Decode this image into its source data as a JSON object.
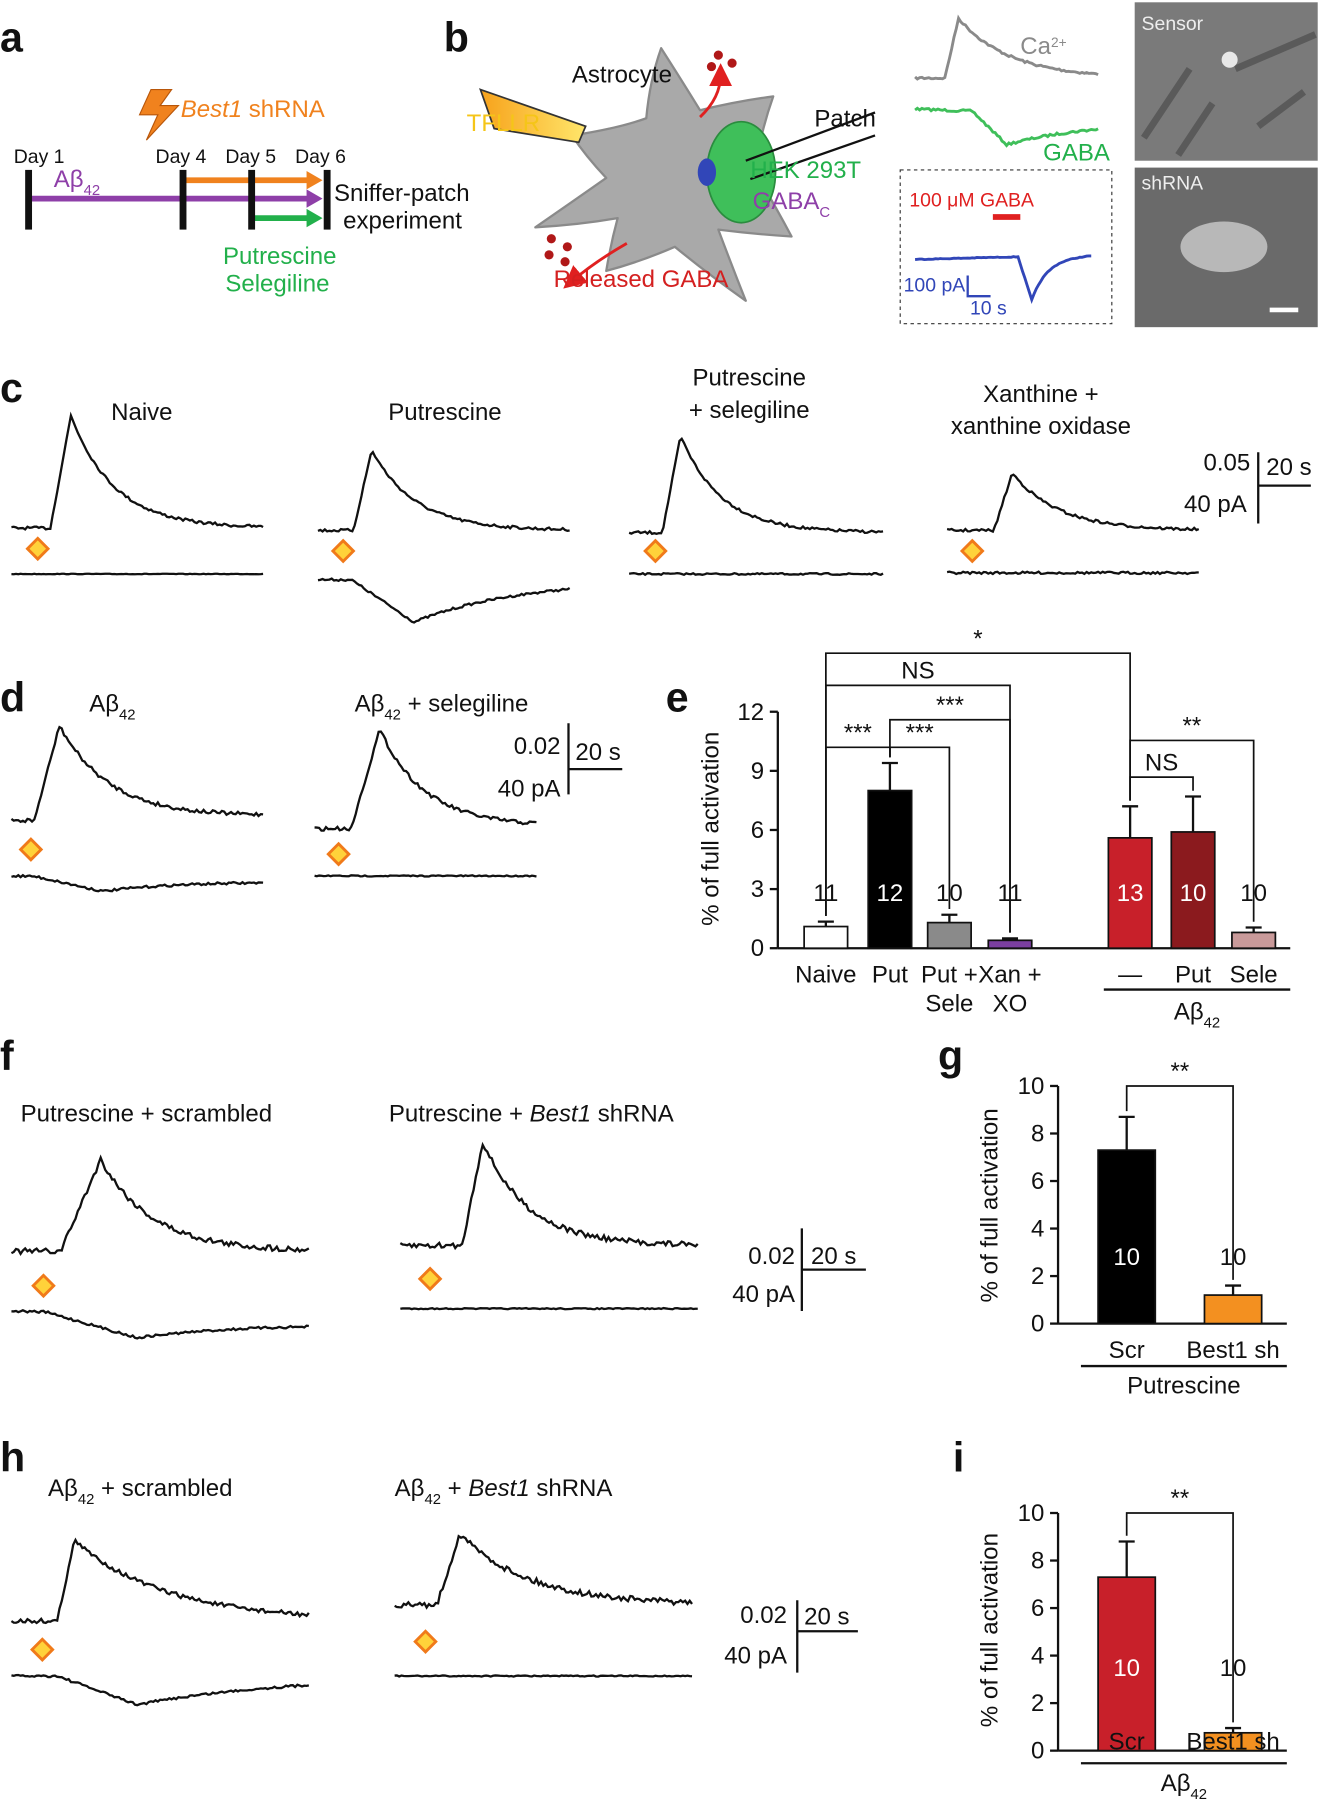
{
  "panel_labels": [
    "a",
    "b",
    "c",
    "d",
    "e",
    "f",
    "g",
    "h",
    "i"
  ],
  "panel_a": {
    "days": [
      "Day 1",
      "Day 4",
      "Day 5",
      "Day 6"
    ],
    "shrna": [
      "Best1",
      " shRNA"
    ],
    "abeta": [
      "Aβ",
      "42"
    ],
    "outcome": [
      "Sniffer-patch",
      "experiment"
    ],
    "drugs": [
      "Putrescine",
      "Selegiline"
    ]
  },
  "panel_b": {
    "astrocyte": "Astrocyte",
    "agonist": "TFLLR",
    "patch": "Patch",
    "sensor_cell": "HEK 293T",
    "receptor": [
      "GABA",
      "C"
    ],
    "released": "Released GABA",
    "ca": [
      "Ca",
      "2+"
    ],
    "gaba": "GABA",
    "puff": "100 μM GABA",
    "scale_current": "100 pA",
    "scale_time": "10 s",
    "image_labels": [
      "Sensor",
      "shRNA"
    ]
  },
  "panel_c": {
    "conditions": [
      [
        "Naive"
      ],
      [
        "Putrescine"
      ],
      [
        "Putrescine",
        "+ selegiline"
      ],
      [
        "Xanthine +",
        "xanthine oxidase"
      ]
    ],
    "scale": [
      "0.05",
      "20 s",
      "40 pA"
    ]
  },
  "panel_d": {
    "conditions": [
      [
        "Aβ",
        "42"
      ],
      [
        "Aβ",
        "42",
        " + selegiline"
      ]
    ],
    "scale": [
      "0.02",
      "20 s",
      "40 pA"
    ]
  },
  "panel_f": {
    "conditions": [
      [
        "Putrescine + scrambled"
      ],
      [
        "Putrescine + ",
        "Best1",
        " shRNA"
      ]
    ],
    "scale": [
      "0.02",
      "20 s",
      "40 pA"
    ]
  },
  "panel_h": {
    "conditions": [
      [
        "Aβ",
        "42",
        " + scrambled"
      ],
      [
        "Aβ",
        "42",
        " + ",
        "Best1",
        " shRNA"
      ]
    ],
    "scale": [
      "0.02",
      "20 s",
      "40 pA"
    ]
  },
  "chart_data": [
    {
      "type": "bar",
      "ylabel": "% of full activation",
      "categories": [
        "Naive",
        "Put",
        "Put + Sele",
        "Xan + XO",
        "—",
        "Put",
        "Sele"
      ],
      "values": [
        1.1,
        8.0,
        1.3,
        0.4,
        5.6,
        5.9,
        0.8
      ],
      "errors": [
        0.25,
        1.4,
        0.4,
        0.1,
        1.6,
        1.8,
        0.25
      ],
      "n_labels": [
        "11",
        "12",
        "10",
        "11",
        "13",
        "10",
        "10"
      ],
      "colors": [
        "#ffffff",
        "#000000",
        "#8a8a8a",
        "#7b3fa0",
        "#c8202a",
        "#8b1a1e",
        "#c99a9a"
      ],
      "ylim": [
        0,
        12
      ],
      "yticks": [
        0,
        3,
        6,
        9,
        12
      ],
      "group_label": [
        "Aβ",
        "42"
      ],
      "significance": [
        "***",
        "***",
        "***",
        "NS",
        "*",
        "**",
        "NS"
      ]
    },
    {
      "type": "bar",
      "ylabel": "% of full activation",
      "categories": [
        "Scr",
        "Best1 sh"
      ],
      "values": [
        7.3,
        1.2
      ],
      "errors": [
        1.4,
        0.4
      ],
      "n_labels": [
        "10",
        "10"
      ],
      "colors": [
        "#000000",
        "#f39020"
      ],
      "ylim": [
        0,
        10
      ],
      "yticks": [
        0,
        2,
        4,
        6,
        8,
        10
      ],
      "group_label": [
        "Putrescine"
      ],
      "significance": [
        "**"
      ]
    },
    {
      "type": "bar",
      "ylabel": "% of full activation",
      "categories": [
        "Scr",
        "Best1 sh"
      ],
      "values": [
        7.3,
        0.75
      ],
      "errors": [
        1.5,
        0.2
      ],
      "n_labels": [
        "10",
        "10"
      ],
      "colors": [
        "#c8202a",
        "#f39020"
      ],
      "ylim": [
        0,
        10
      ],
      "yticks": [
        0,
        2,
        4,
        6,
        8,
        10
      ],
      "group_label": [
        "Aβ",
        "42"
      ],
      "significance": [
        "**"
      ]
    }
  ]
}
